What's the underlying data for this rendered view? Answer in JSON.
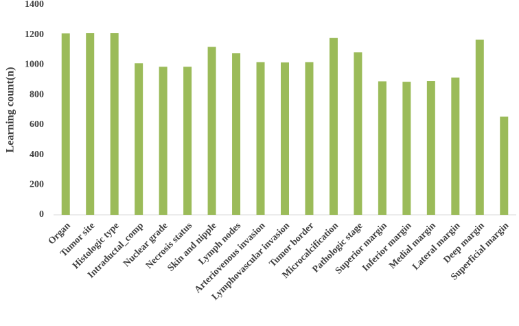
{
  "chart_data": {
    "type": "bar",
    "y_label": "Learning count(n)",
    "categories": [
      "Organ",
      "Tumor site",
      "Histologic type",
      "Intraductal_comp",
      "Nuclear grade",
      "Necrosis status",
      "Skin and nipple",
      "Lymph nodes",
      "Arteriovenous invasion",
      "Lymphovascular invasion",
      "Tumor border",
      "Microcalcification",
      "Pathologic stage",
      "Superior margin",
      "Inferior margin",
      "Medial margin",
      "Lateral margin",
      "Deep margin",
      "Superficial margin"
    ],
    "values": [
      1210,
      1212,
      1212,
      1010,
      987,
      987,
      1120,
      1078,
      1018,
      1016,
      1018,
      1180,
      1083,
      890,
      887,
      892,
      915,
      1168,
      655
    ],
    "color": "#9bbb59",
    "ylim": [
      0,
      1400
    ],
    "yticks": [
      0,
      200,
      400,
      600,
      800,
      1000,
      1200,
      1400
    ],
    "grid": false
  }
}
